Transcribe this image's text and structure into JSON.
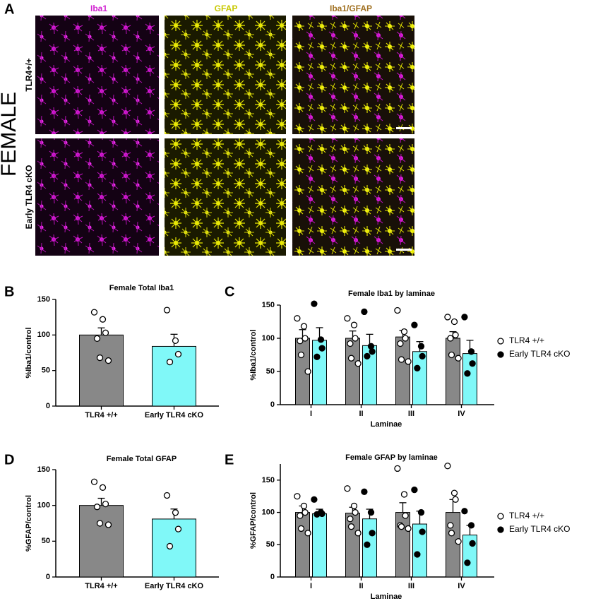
{
  "panel_a": {
    "panel_label": "A",
    "side_label": "FEMALE",
    "column_titles": [
      "Iba1",
      "GFAP",
      "Iba1/GFAP"
    ],
    "row_labels": [
      "TLR4+/+",
      "Early TLR4 cKO"
    ]
  },
  "chart_data": [
    {
      "type": "bar",
      "panel_label": "B",
      "title": "Female Total Iba1",
      "ylabel": "%Iba1/control",
      "categories": [
        "TLR4 +/+",
        "Early TLR4 cKO"
      ],
      "values": [
        100,
        84
      ],
      "errors": [
        10,
        17
      ],
      "colors": [
        "#888888",
        "#80f8f8"
      ],
      "points": [
        [
          132,
          122,
          103,
          95,
          68,
          64
        ],
        [
          135,
          92,
          73,
          62
        ]
      ],
      "ylim": [
        0,
        150
      ],
      "yticks": [
        0,
        50,
        100,
        150
      ]
    },
    {
      "type": "grouped_bar",
      "panel_label": "C",
      "title": "Female Iba1 by laminae",
      "ylabel": "%Iba1/control",
      "xlabel": "Laminae",
      "categories": [
        "I",
        "II",
        "III",
        "IV"
      ],
      "series": [
        {
          "name": "TLR4 +/+",
          "color": "#888888",
          "marker": "#ffffff",
          "values": [
            100,
            100,
            102,
            100
          ],
          "errors": [
            13,
            11,
            10,
            10
          ],
          "points": [
            [
              130,
              118,
              100,
              96,
              75,
              50
            ],
            [
              130,
              120,
              100,
              92,
              70,
              62
            ],
            [
              142,
              110,
              100,
              92,
              68,
              65
            ],
            [
              132,
              125,
              105,
              100,
              75,
              70
            ]
          ]
        },
        {
          "name": "Early TLR4 cKO",
          "color": "#80f8f8",
          "marker": "#000000",
          "values": [
            97,
            89,
            80,
            77
          ],
          "errors": [
            19,
            17,
            15,
            20
          ],
          "points": [
            [
              152,
              98,
              85,
              72
            ],
            [
              140,
              88,
              80,
              73
            ],
            [
              120,
              88,
              73,
              55
            ],
            [
              132,
              80,
              62,
              47
            ]
          ]
        }
      ],
      "ylim": [
        0,
        150
      ],
      "yticks": [
        0,
        50,
        100,
        150
      ],
      "legend": "right"
    },
    {
      "type": "bar",
      "panel_label": "D",
      "title": "Female Total GFAP",
      "ylabel": "%GFAP/control",
      "categories": [
        "TLR4 +/+",
        "Early TLR4 cKO"
      ],
      "values": [
        100,
        81
      ],
      "errors": [
        10,
        14
      ],
      "colors": [
        "#888888",
        "#80f8f8"
      ],
      "points": [
        [
          133,
          125,
          102,
          98,
          75,
          73
        ],
        [
          114,
          90,
          67,
          43
        ]
      ],
      "ylim": [
        0,
        150
      ],
      "yticks": [
        0,
        50,
        100,
        150
      ]
    },
    {
      "type": "grouped_bar",
      "panel_label": "E",
      "title": "Female GFAP by laminae",
      "ylabel": "%GFAP/control",
      "xlabel": "Laminae",
      "categories": [
        "I",
        "II",
        "III",
        "IV"
      ],
      "series": [
        {
          "name": "TLR4 +/+",
          "color": "#888888",
          "marker": "#ffffff",
          "values": [
            100,
            99,
            100,
            100
          ],
          "errors": [
            10,
            9,
            15,
            20
          ],
          "points": [
            [
              125,
              110,
              100,
              95,
              75,
              68
            ],
            [
              137,
              110,
              100,
              90,
              78,
              68
            ],
            [
              168,
              128,
              95,
              80,
              78,
              75
            ],
            [
              172,
              130,
              120,
              80,
              68,
              55
            ]
          ]
        },
        {
          "name": "Early TLR4 cKO",
          "color": "#80f8f8",
          "marker": "#000000",
          "values": [
            98,
            90,
            82,
            65
          ],
          "errors": [
            7,
            15,
            20,
            15
          ],
          "points": [
            [
              120,
              100,
              98,
              97
            ],
            [
              132,
              100,
              68,
              50
            ],
            [
              135,
              100,
              70,
              35
            ],
            [
              102,
              80,
              52,
              22
            ]
          ]
        }
      ],
      "ylim": [
        0,
        175
      ],
      "yticks": [
        0,
        50,
        100,
        150
      ],
      "legend": "right"
    }
  ]
}
